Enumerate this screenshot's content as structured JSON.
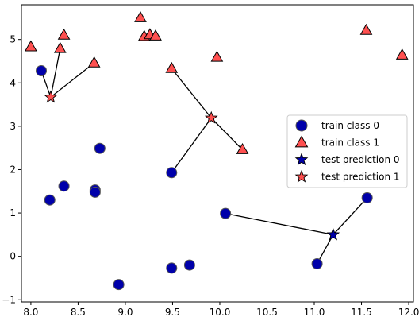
{
  "chart_data": {
    "type": "scatter",
    "title": "",
    "xlabel": "",
    "ylabel": "",
    "xlim": [
      7.9,
      12.05
    ],
    "ylim": [
      -1.05,
      5.8
    ],
    "xticks": [
      8.0,
      8.5,
      9.0,
      9.5,
      10.0,
      10.5,
      11.0,
      11.5,
      12.0
    ],
    "yticks": [
      -1,
      0,
      1,
      2,
      3,
      4,
      5
    ],
    "grid": false,
    "legend_position": "center-right",
    "colors": {
      "class0": "#0000aa",
      "class1": "#ff5050",
      "edge": "#000000",
      "line": "#000000"
    },
    "series": [
      {
        "name": "train class 0",
        "marker": "circle",
        "points": [
          [
            8.11,
            4.28
          ],
          [
            8.2,
            1.3
          ],
          [
            8.35,
            1.62
          ],
          [
            8.68,
            1.53
          ],
          [
            8.68,
            1.48
          ],
          [
            8.73,
            2.49
          ],
          [
            8.93,
            -0.65
          ],
          [
            9.49,
            1.93
          ],
          [
            9.49,
            -0.27
          ],
          [
            9.68,
            -0.2
          ],
          [
            10.06,
            0.99
          ],
          [
            11.03,
            -0.17
          ],
          [
            11.56,
            1.35
          ]
        ]
      },
      {
        "name": "train class 1",
        "marker": "triangle",
        "points": [
          [
            8.0,
            4.83
          ],
          [
            8.31,
            4.79
          ],
          [
            8.35,
            5.1
          ],
          [
            8.67,
            4.46
          ],
          [
            9.16,
            5.5
          ],
          [
            9.2,
            5.07
          ],
          [
            9.26,
            5.11
          ],
          [
            9.32,
            5.08
          ],
          [
            9.49,
            4.33
          ],
          [
            9.97,
            4.59
          ],
          [
            10.24,
            2.46
          ],
          [
            11.55,
            5.21
          ],
          [
            11.93,
            4.64
          ]
        ]
      },
      {
        "name": "test prediction 0",
        "marker": "star",
        "points": [
          [
            11.2,
            0.5
          ]
        ]
      },
      {
        "name": "test prediction 1",
        "marker": "star",
        "points": [
          [
            8.21,
            3.67
          ],
          [
            9.91,
            3.19
          ]
        ]
      }
    ],
    "neighbor_lines": [
      {
        "from": [
          8.21,
          3.67
        ],
        "to": [
          8.11,
          4.28
        ]
      },
      {
        "from": [
          8.21,
          3.67
        ],
        "to": [
          8.31,
          4.79
        ]
      },
      {
        "from": [
          8.21,
          3.67
        ],
        "to": [
          8.67,
          4.46
        ]
      },
      {
        "from": [
          9.91,
          3.19
        ],
        "to": [
          9.49,
          4.33
        ]
      },
      {
        "from": [
          9.91,
          3.19
        ],
        "to": [
          9.49,
          1.93
        ]
      },
      {
        "from": [
          9.91,
          3.19
        ],
        "to": [
          10.24,
          2.46
        ]
      },
      {
        "from": [
          11.2,
          0.5
        ],
        "to": [
          10.06,
          0.99
        ]
      },
      {
        "from": [
          11.2,
          0.5
        ],
        "to": [
          11.03,
          -0.17
        ]
      },
      {
        "from": [
          11.2,
          0.5
        ],
        "to": [
          11.56,
          1.35
        ]
      }
    ]
  }
}
